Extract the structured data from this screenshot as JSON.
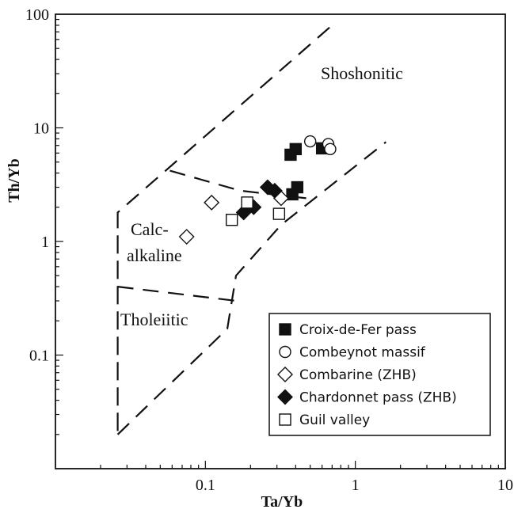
{
  "chart_data": {
    "type": "scatter",
    "xlabel": "Ta/Yb",
    "ylabel": "Th/Yb",
    "x_scale": "log",
    "y_scale": "log",
    "xlim": [
      0.01,
      10
    ],
    "ylim": [
      0.01,
      100
    ],
    "x_ticks": [
      "0.1",
      "1",
      "10"
    ],
    "y_ticks": [
      "0.1",
      "1",
      "10",
      "100"
    ],
    "grid": false,
    "legend_placement": "bottom-right",
    "field_labels": [
      "Shoshonitic",
      "Calc-",
      "alkaline",
      "Tholeiitic"
    ],
    "boundaries": [
      {
        "name": "outer-upper",
        "points": [
          [
            0.026,
            1.8
          ],
          [
            0.026,
            0.4
          ],
          [
            0.026,
            0.02
          ],
          [
            0.026,
            1.8
          ],
          [
            0.7,
            80
          ]
        ]
      },
      {
        "name": "outer-lower",
        "points": [
          [
            0.026,
            0.02
          ],
          [
            0.14,
            0.17
          ],
          [
            0.16,
            0.5
          ],
          [
            0.32,
            1.4
          ],
          [
            1.6,
            7.5
          ]
        ]
      },
      {
        "name": "shoshonitic-calcalkaline",
        "points": [
          [
            0.058,
            4.2
          ],
          [
            0.17,
            2.8
          ],
          [
            0.47,
            2.4
          ]
        ]
      },
      {
        "name": "calcalkaline-tholeiitic",
        "points": [
          [
            0.026,
            0.4
          ],
          [
            0.16,
            0.3
          ]
        ]
      }
    ],
    "series": [
      {
        "name": "Croix-de-Fer pass",
        "marker": "filled-square",
        "points": [
          [
            0.37,
            5.8
          ],
          [
            0.4,
            6.5
          ],
          [
            0.6,
            6.6
          ],
          [
            0.38,
            2.6
          ],
          [
            0.41,
            3.0
          ]
        ]
      },
      {
        "name": "Combeynot massif",
        "marker": "open-circle",
        "points": [
          [
            0.5,
            7.6
          ],
          [
            0.66,
            7.2
          ],
          [
            0.68,
            6.5
          ]
        ]
      },
      {
        "name": "Combarine (ZHB)",
        "marker": "open-diamond",
        "points": [
          [
            0.11,
            2.2
          ],
          [
            0.075,
            1.1
          ],
          [
            0.32,
            2.4
          ]
        ]
      },
      {
        "name": "Chardonnet pass (ZHB)",
        "marker": "filled-diamond",
        "points": [
          [
            0.18,
            1.8
          ],
          [
            0.21,
            2.0
          ],
          [
            0.26,
            3.0
          ],
          [
            0.29,
            2.8
          ]
        ]
      },
      {
        "name": "Guil valley",
        "marker": "open-square",
        "points": [
          [
            0.19,
            2.2
          ],
          [
            0.15,
            1.55
          ],
          [
            0.31,
            1.75
          ]
        ]
      }
    ]
  }
}
